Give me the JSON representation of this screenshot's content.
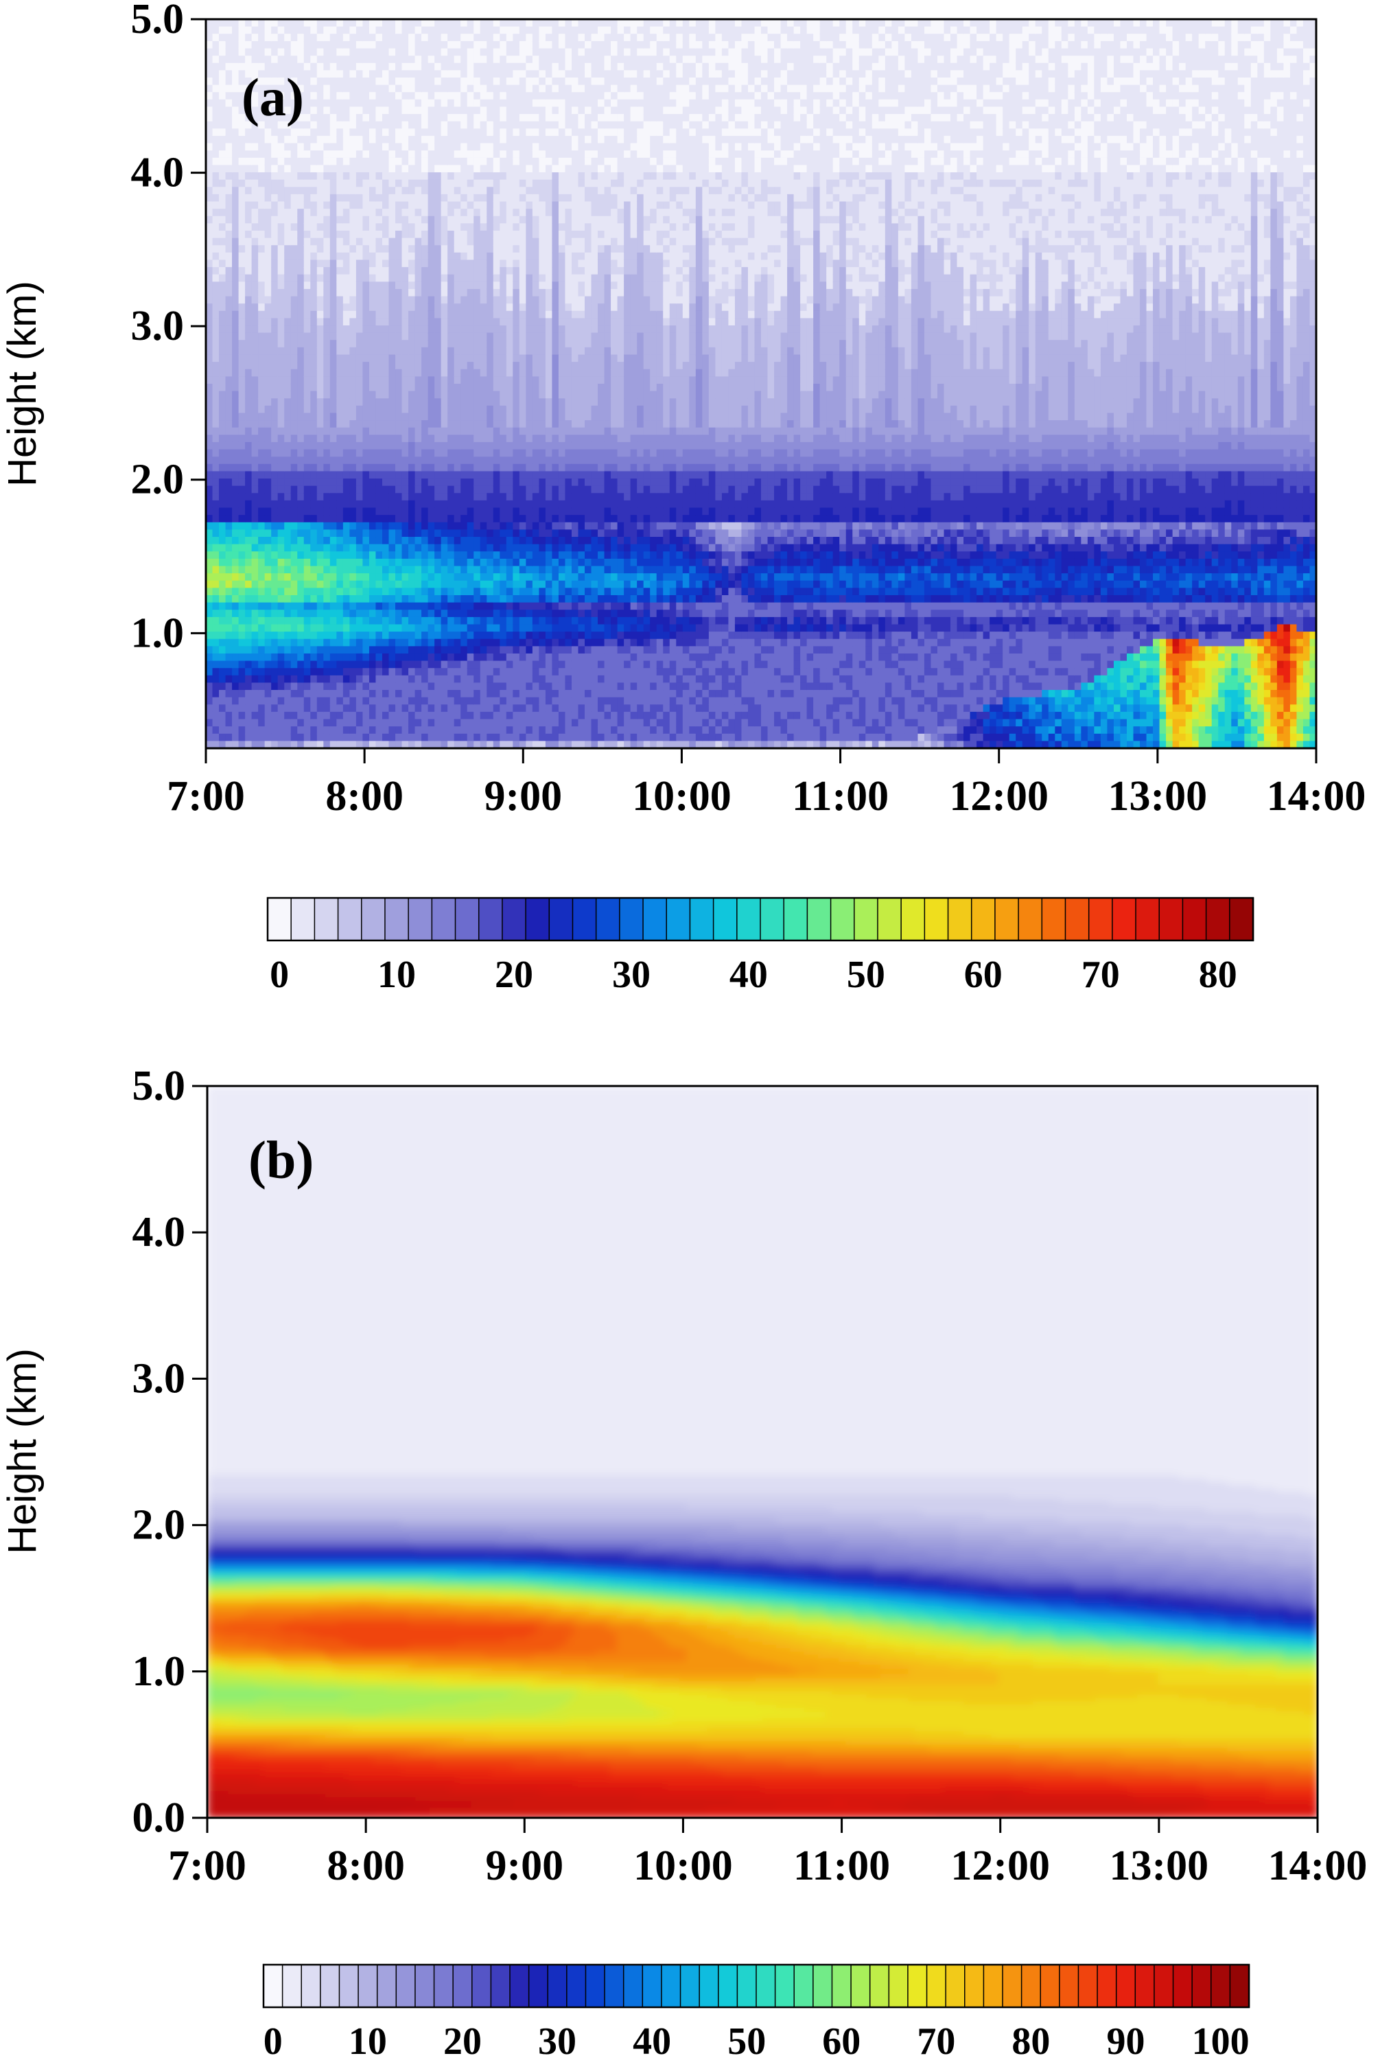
{
  "chart_data": [
    {
      "type": "heatmap",
      "panel_label": "(a)",
      "xlabel": "",
      "ylabel": "Height (km)",
      "xticks": [
        "7:00",
        "8:00",
        "9:00",
        "10:00",
        "11:00",
        "12:00",
        "13:00",
        "14:00"
      ],
      "yticks": [
        "1.0",
        "2.0",
        "3.0",
        "4.0",
        "5.0"
      ],
      "xlim_hours": [
        7,
        14
      ],
      "ylim_km": [
        0.25,
        5.0
      ],
      "colorbar": {
        "ticks": [
          "0",
          "10",
          "20",
          "30",
          "40",
          "50",
          "60",
          "70",
          "80"
        ],
        "range": [
          0,
          84
        ],
        "levels": 42
      },
      "x": [
        7.0,
        7.5,
        8.0,
        8.5,
        9.0,
        9.5,
        10.0,
        10.33,
        10.5,
        11.0,
        11.5,
        12.0,
        12.5,
        13.0,
        13.1,
        13.5,
        13.8,
        14.0
      ],
      "features": {
        "upper_layer_mean_km": 1.35,
        "upper_layer_values": [
          52,
          50,
          44,
          38,
          36,
          34,
          33,
          22,
          30,
          30,
          30,
          30,
          28,
          30,
          30,
          30,
          32,
          32
        ],
        "lower_layer_mean_km": 1.05,
        "lower_layer_values": [
          46,
          44,
          40,
          34,
          30,
          28,
          26,
          20,
          24,
          24,
          22,
          22,
          22,
          22,
          22,
          22,
          22,
          22
        ],
        "surface_layer_values": [
          10,
          10,
          10,
          10,
          10,
          10,
          10,
          10,
          10,
          10,
          10,
          30,
          38,
          46,
          74,
          46,
          78,
          52
        ],
        "surface_layer_top_km": [
          0.32,
          0.32,
          0.32,
          0.3,
          0.3,
          0.3,
          0.3,
          0.3,
          0.3,
          0.3,
          0.32,
          0.55,
          0.65,
          0.95,
          0.95,
          0.92,
          1.05,
          1.0
        ],
        "blue_band_top_km": 2.05,
        "blue_band_values": 18,
        "background_above_4km": 2
      }
    },
    {
      "type": "heatmap",
      "panel_label": "(b)",
      "xlabel": "",
      "ylabel": "Height (km)",
      "xticks": [
        "7:00",
        "8:00",
        "9:00",
        "10:00",
        "11:00",
        "12:00",
        "13:00",
        "14:00"
      ],
      "yticks": [
        "0.0",
        "1.0",
        "2.0",
        "3.0",
        "4.0",
        "5.0"
      ],
      "xlim_hours": [
        7,
        14
      ],
      "ylim_km": [
        0.0,
        5.0
      ],
      "colorbar": {
        "ticks": [
          "0",
          "10",
          "20",
          "30",
          "40",
          "50",
          "60",
          "70",
          "80",
          "90",
          "100"
        ],
        "range": [
          0,
          104
        ],
        "levels": 52
      },
      "x": [
        7,
        8,
        9,
        10,
        11,
        12,
        13,
        14
      ],
      "y": [
        0.0,
        0.1,
        0.25,
        0.4,
        0.55,
        0.7,
        0.85,
        1.0,
        1.15,
        1.3,
        1.45,
        1.6,
        1.75,
        1.9,
        2.05,
        2.2,
        2.35,
        2.5,
        5.0
      ],
      "z": [
        [
          96,
          96,
          94,
          93,
          92,
          95,
          94,
          92
        ],
        [
          98,
          97,
          96,
          95,
          94,
          96,
          95,
          92
        ],
        [
          94,
          93,
          92,
          91,
          90,
          90,
          88,
          86
        ],
        [
          90,
          88,
          86,
          84,
          82,
          82,
          80,
          78
        ],
        [
          78,
          76,
          74,
          74,
          74,
          72,
          72,
          72
        ],
        [
          66,
          64,
          66,
          68,
          70,
          70,
          70,
          72
        ],
        [
          60,
          62,
          64,
          70,
          72,
          74,
          72,
          74
        ],
        [
          66,
          72,
          76,
          80,
          78,
          74,
          72,
          68
        ],
        [
          80,
          86,
          85,
          80,
          74,
          68,
          62,
          54
        ],
        [
          85,
          88,
          87,
          78,
          68,
          56,
          46,
          34
        ],
        [
          78,
          80,
          76,
          66,
          54,
          40,
          30,
          22
        ],
        [
          60,
          62,
          58,
          46,
          34,
          24,
          20,
          16
        ],
        [
          36,
          36,
          34,
          26,
          20,
          16,
          14,
          11
        ],
        [
          18,
          18,
          17,
          16,
          14,
          12,
          10,
          8
        ],
        [
          10,
          10,
          10,
          10,
          9,
          8,
          7,
          6
        ],
        [
          6,
          6,
          6,
          6,
          6,
          6,
          5,
          4
        ],
        [
          4,
          4,
          4,
          4,
          4,
          4,
          4,
          3
        ],
        [
          2,
          2,
          2,
          2,
          2,
          2,
          2,
          2
        ],
        [
          2,
          2,
          2,
          2,
          2,
          2,
          2,
          2
        ]
      ]
    }
  ],
  "colormap_stops": [
    "#ffffff",
    "#d0d0ee",
    "#9d9ddc",
    "#6f6fcf",
    "#1e1eb2",
    "#0b40d0",
    "#0a90e8",
    "#10c8dc",
    "#40e6b2",
    "#a2f060",
    "#eee820",
    "#f6b012",
    "#f46a0c",
    "#ec2410",
    "#c40a0a",
    "#8c0404"
  ]
}
